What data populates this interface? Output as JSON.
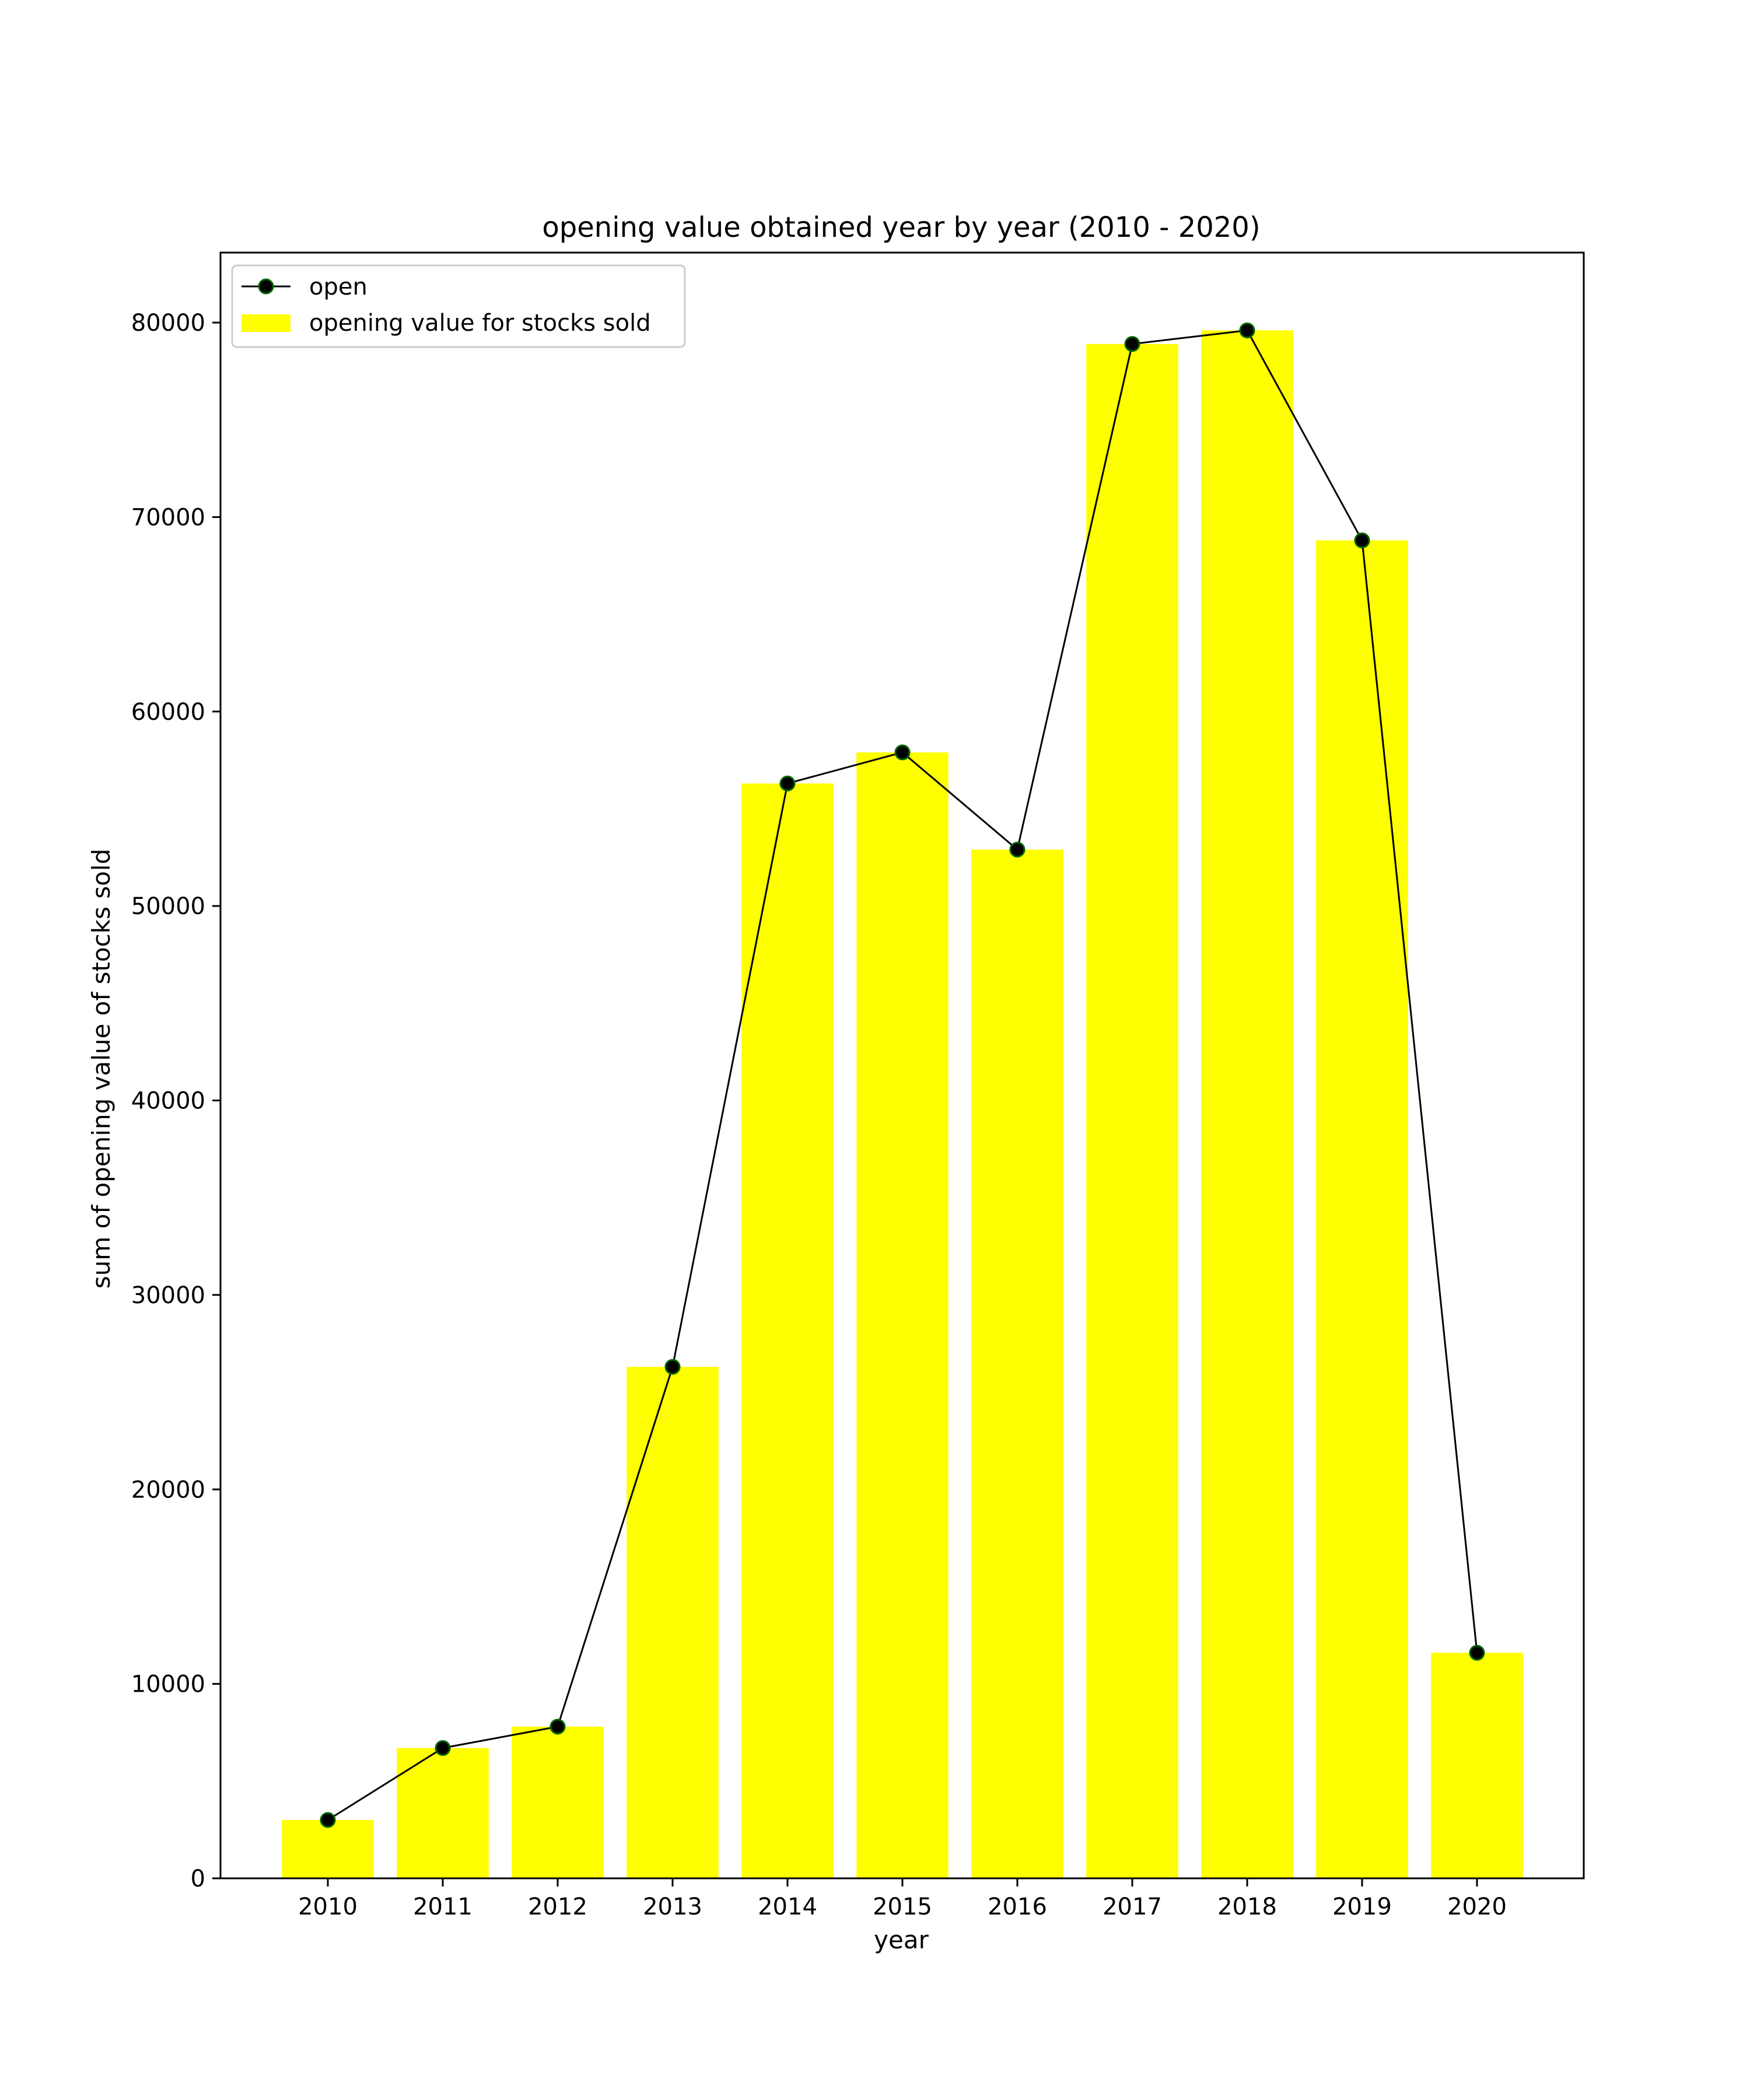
{
  "chart_data": {
    "type": "bar",
    "title": "opening value obtained  year by year (2010 - 2020)",
    "xlabel": "year",
    "ylabel": "sum of opening value of stocks sold",
    "categories": [
      "2010",
      "2011",
      "2012",
      "2013",
      "2014",
      "2015",
      "2016",
      "2017",
      "2018",
      "2019",
      "2020"
    ],
    "ylim": [
      0,
      83600
    ],
    "yticks": [
      0,
      10000,
      20000,
      30000,
      40000,
      50000,
      60000,
      70000,
      80000
    ],
    "ytick_labels": [
      "0",
      "10000",
      "20000",
      "30000",
      "40000",
      "50000",
      "60000",
      "70000",
      "80000"
    ],
    "grid": false,
    "legend_position": "top-left",
    "series": [
      {
        "name": "open",
        "type": "line",
        "color": "#000000",
        "marker_color": "#006400",
        "values": [
          3000,
          6700,
          7800,
          26300,
          56300,
          57900,
          52900,
          78900,
          79600,
          68800,
          11600
        ]
      },
      {
        "name": "opening value for stocks sold",
        "type": "bar",
        "color": "#ffff00",
        "values": [
          3000,
          6700,
          7800,
          26300,
          56300,
          57900,
          52900,
          78900,
          79600,
          68800,
          11600
        ]
      }
    ]
  }
}
